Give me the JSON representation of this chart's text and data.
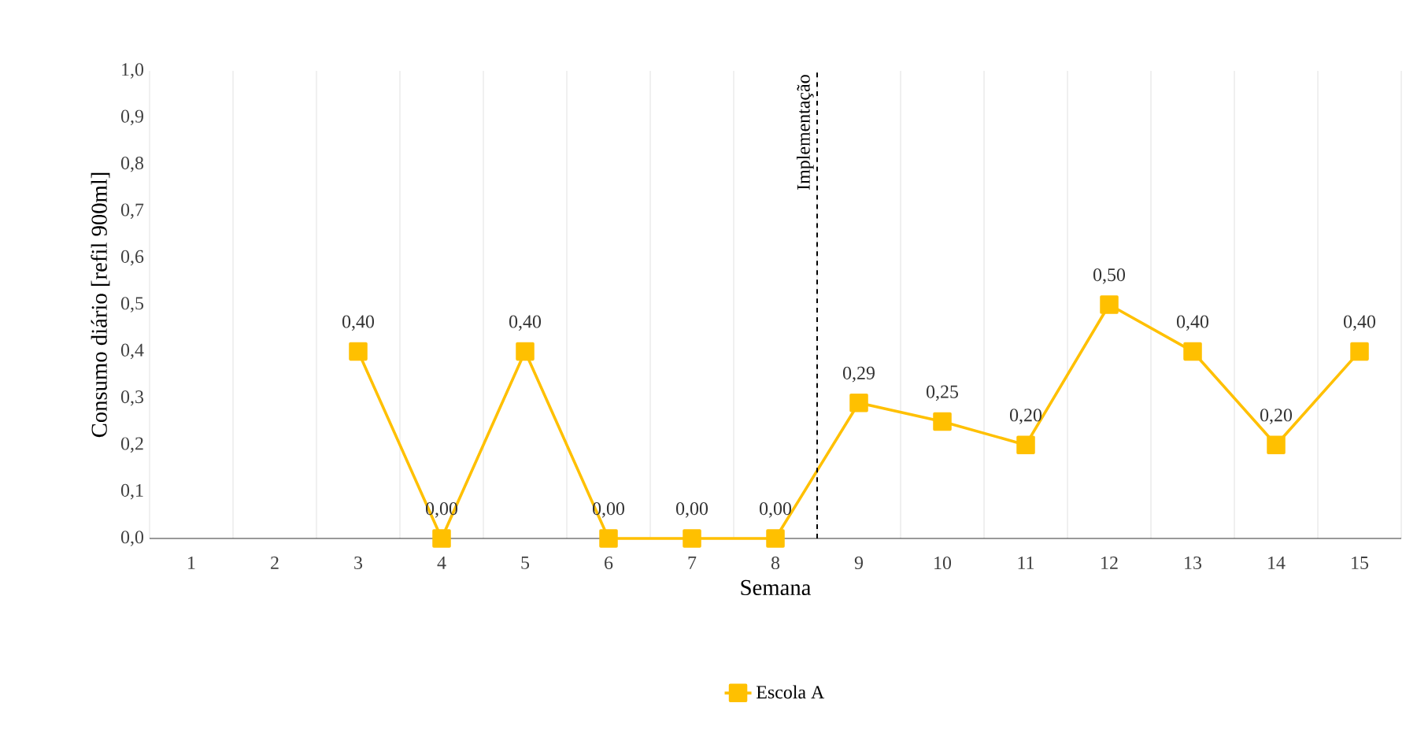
{
  "chart_data": {
    "type": "line",
    "xlabel": "Semana",
    "ylabel": "Consumo diário [refil 900ml]",
    "x": [
      3,
      4,
      5,
      6,
      7,
      8,
      9,
      10,
      11,
      12,
      13,
      14,
      15
    ],
    "series": [
      {
        "name": "Escola A",
        "color": "#ffc000",
        "values": [
          0.4,
          0,
          0.4,
          0,
          0,
          0,
          0.29,
          0.25,
          0.2,
          0.5,
          0.4,
          0.2,
          0.4
        ],
        "value_labels": [
          "0,40",
          "0,00",
          "0,40",
          "0,00",
          "0,00",
          "0,00",
          "0,29",
          "0,25",
          "0,20",
          "0,50",
          "0,40",
          "0,20",
          "0,40"
        ]
      }
    ],
    "xlim": [
      0.5,
      15.5
    ],
    "xticks": [
      1,
      2,
      3,
      4,
      5,
      6,
      7,
      8,
      9,
      10,
      11,
      12,
      13,
      14,
      15
    ],
    "ylim": [
      0,
      1
    ],
    "yticks": [
      {
        "value": 0,
        "label": "0,0"
      },
      {
        "value": 0.1,
        "label": "0,1"
      },
      {
        "value": 0.2,
        "label": "0,2"
      },
      {
        "value": 0.3,
        "label": "0,3"
      },
      {
        "value": 0.4,
        "label": "0,4"
      },
      {
        "value": 0.5,
        "label": "0,5"
      },
      {
        "value": 0.6,
        "label": "0,6"
      },
      {
        "value": 0.7,
        "label": "0,7"
      },
      {
        "value": 0.8,
        "label": "0,8"
      },
      {
        "value": 0.9,
        "label": "0,9"
      },
      {
        "value": 1,
        "label": "1,0"
      }
    ],
    "ref_lines": [
      {
        "axis": "x",
        "value": 8.5,
        "label": "Implementação",
        "color": "#000000",
        "line_style": "dashed"
      }
    ],
    "grid": "x",
    "legend": "bottom",
    "marker": "square",
    "line_style": "solid"
  }
}
